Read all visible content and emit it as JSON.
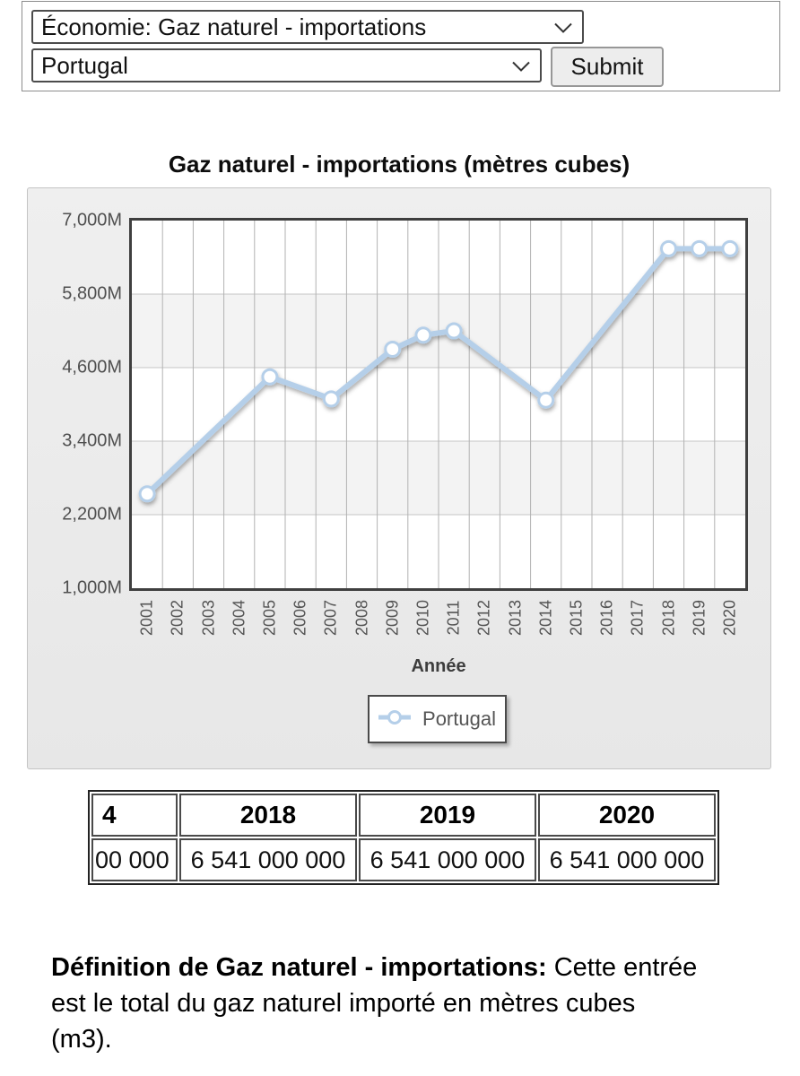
{
  "form": {
    "economy_select_value": "Économie: Gaz naturel - importations",
    "country_select_value": "Portugal",
    "submit_label": "Submit"
  },
  "chart_data": {
    "type": "line",
    "title": "Gaz naturel - importations (mètres cubes)",
    "xlabel": "Année",
    "x_categories": [
      "2001",
      "2002",
      "2003",
      "2004",
      "2005",
      "2006",
      "2007",
      "2008",
      "2009",
      "2010",
      "2011",
      "2012",
      "2013",
      "2014",
      "2015",
      "2016",
      "2017",
      "2018",
      "2019",
      "2020"
    ],
    "y_ticks_millions": [
      1000,
      2200,
      3400,
      4600,
      5800,
      7000
    ],
    "y_tick_labels": [
      "1,000M",
      "2,200M",
      "3,400M",
      "4,600M",
      "5,800M",
      "7,000M"
    ],
    "ylim_millions": [
      1000,
      7000
    ],
    "grid": true,
    "legend_position": "bottom-center",
    "line_color": "#b5cfe9",
    "marker": "open-circle",
    "series": [
      {
        "name": "Portugal",
        "unit": "millions m3",
        "points": [
          {
            "x": "2001",
            "y": 2540
          },
          {
            "x": "2005",
            "y": 4450
          },
          {
            "x": "2007",
            "y": 4090
          },
          {
            "x": "2009",
            "y": 4900
          },
          {
            "x": "2010",
            "y": 5130
          },
          {
            "x": "2011",
            "y": 5200
          },
          {
            "x": "2014",
            "y": 4070
          },
          {
            "x": "2018",
            "y": 6541
          },
          {
            "x": "2019",
            "y": 6541
          },
          {
            "x": "2020",
            "y": 6541
          }
        ]
      }
    ]
  },
  "table": {
    "headers": [
      "4",
      "2018",
      "2019",
      "2020"
    ],
    "values": [
      "00 000",
      "6 541 000 000",
      "6 541 000 000",
      "6 541 000 000"
    ]
  },
  "definition": {
    "label": "Définition de Gaz naturel - importations:",
    "text": " Cette entrée est le total du gaz naturel importé en mètres cubes (m3)."
  }
}
